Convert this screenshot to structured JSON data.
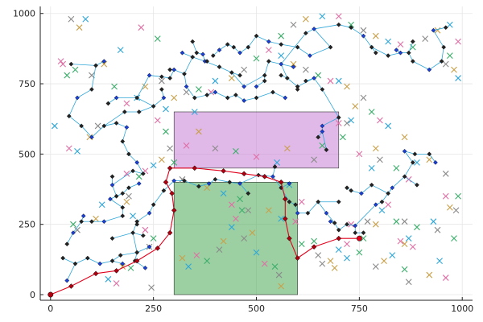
{
  "chart_data": {
    "type": "scatter",
    "title": "",
    "xlabel": "",
    "ylabel": "",
    "xlim": [
      -25,
      1025
    ],
    "ylim": [
      -20,
      1025
    ],
    "xticks": [
      0,
      250,
      500,
      750,
      1000
    ],
    "yticks": [
      0,
      250,
      500,
      750,
      1000
    ],
    "xtick_labels": [
      "0",
      "250",
      "500",
      "750",
      "1000"
    ],
    "ytick_labels": [
      "0",
      "250",
      "500",
      "750",
      "1000"
    ],
    "grid": true,
    "legend": "none",
    "obstacles": [
      {
        "x0": 300,
        "y0": 450,
        "x1": 700,
        "y1": 650,
        "color": "#c77fd6",
        "alpha": 0.55
      },
      {
        "x0": 300,
        "y0": 0,
        "x1": 600,
        "y1": 400,
        "color": "#4aaa55",
        "alpha": 0.55
      }
    ],
    "tree_color": "#2ea6d8",
    "path_color": "#e0001b",
    "start": {
      "x": 0,
      "y": 0
    },
    "goal": {
      "x": 750,
      "y": 200
    },
    "path": [
      [
        0,
        0
      ],
      [
        50,
        30
      ],
      [
        110,
        75
      ],
      [
        160,
        85
      ],
      [
        210,
        120
      ],
      [
        260,
        165
      ],
      [
        290,
        220
      ],
      [
        300,
        300
      ],
      [
        295,
        360
      ],
      [
        280,
        400
      ],
      [
        290,
        450
      ],
      [
        350,
        450
      ],
      [
        420,
        440
      ],
      [
        470,
        430
      ],
      [
        520,
        420
      ],
      [
        560,
        400
      ],
      [
        570,
        340
      ],
      [
        570,
        270
      ],
      [
        580,
        200
      ],
      [
        600,
        130
      ],
      [
        640,
        170
      ],
      [
        700,
        200
      ],
      [
        750,
        200
      ]
    ],
    "tree_nodes": [
      [
        40,
        50
      ],
      [
        60,
        110
      ],
      [
        90,
        130
      ],
      [
        120,
        110
      ],
      [
        150,
        120
      ],
      [
        170,
        140
      ],
      [
        175,
        110
      ],
      [
        210,
        150
      ],
      [
        205,
        120
      ],
      [
        230,
        95
      ],
      [
        200,
        220
      ],
      [
        210,
        260
      ],
      [
        240,
        290
      ],
      [
        250,
        320
      ],
      [
        275,
        370
      ],
      [
        300,
        405
      ],
      [
        325,
        405
      ],
      [
        360,
        385
      ],
      [
        385,
        395
      ],
      [
        400,
        410
      ],
      [
        435,
        400
      ],
      [
        460,
        395
      ],
      [
        480,
        360
      ],
      [
        505,
        425
      ],
      [
        540,
        420
      ],
      [
        545,
        455
      ],
      [
        560,
        380
      ],
      [
        580,
        395
      ],
      [
        580,
        330
      ],
      [
        595,
        320
      ],
      [
        600,
        290
      ],
      [
        625,
        290
      ],
      [
        650,
        330
      ],
      [
        670,
        290
      ],
      [
        690,
        255
      ],
      [
        700,
        330
      ],
      [
        680,
        260
      ],
      [
        700,
        230
      ],
      [
        720,
        250
      ],
      [
        740,
        245
      ],
      [
        740,
        220
      ],
      [
        760,
        220
      ],
      [
        790,
        320
      ],
      [
        805,
        330
      ],
      [
        820,
        360
      ],
      [
        830,
        380
      ],
      [
        860,
        420
      ],
      [
        880,
        470
      ],
      [
        860,
        510
      ],
      [
        885,
        500
      ],
      [
        920,
        500
      ],
      [
        935,
        470
      ],
      [
        890,
        390
      ],
      [
        780,
        390
      ],
      [
        755,
        360
      ],
      [
        730,
        370
      ],
      [
        720,
        380
      ],
      [
        660,
        580
      ],
      [
        670,
        515
      ],
      [
        650,
        560
      ],
      [
        660,
        600
      ],
      [
        700,
        630
      ],
      [
        660,
        730
      ],
      [
        640,
        770
      ],
      [
        600,
        740
      ],
      [
        575,
        770
      ],
      [
        560,
        820
      ],
      [
        530,
        830
      ],
      [
        520,
        780
      ],
      [
        470,
        740
      ],
      [
        440,
        790
      ],
      [
        410,
        810
      ],
      [
        375,
        830
      ],
      [
        345,
        845
      ],
      [
        325,
        785
      ],
      [
        300,
        800
      ],
      [
        290,
        770
      ],
      [
        270,
        775
      ],
      [
        240,
        780
      ],
      [
        210,
        700
      ],
      [
        250,
        670
      ],
      [
        275,
        700
      ],
      [
        215,
        650
      ],
      [
        180,
        650
      ],
      [
        160,
        700
      ],
      [
        140,
        680
      ],
      [
        130,
        600
      ],
      [
        100,
        560
      ],
      [
        75,
        600
      ],
      [
        45,
        635
      ],
      [
        65,
        700
      ],
      [
        100,
        730
      ],
      [
        110,
        815
      ],
      [
        130,
        830
      ],
      [
        50,
        820
      ],
      [
        160,
        610
      ],
      [
        185,
        595
      ],
      [
        175,
        545
      ],
      [
        190,
        500
      ],
      [
        210,
        470
      ],
      [
        225,
        430
      ],
      [
        200,
        440
      ],
      [
        150,
        390
      ],
      [
        150,
        420
      ],
      [
        160,
        350
      ],
      [
        145,
        340
      ],
      [
        175,
        360
      ],
      [
        190,
        380
      ],
      [
        215,
        395
      ],
      [
        175,
        310
      ],
      [
        175,
        280
      ],
      [
        130,
        260
      ],
      [
        100,
        260
      ],
      [
        75,
        260
      ],
      [
        55,
        220
      ],
      [
        40,
        180
      ],
      [
        30,
        130
      ],
      [
        80,
        280
      ],
      [
        150,
        200
      ],
      [
        225,
        210
      ],
      [
        240,
        170
      ],
      [
        210,
        250
      ],
      [
        620,
        930
      ],
      [
        640,
        945
      ],
      [
        700,
        960
      ],
      [
        730,
        950
      ],
      [
        760,
        920
      ],
      [
        780,
        880
      ],
      [
        820,
        850
      ],
      [
        850,
        860
      ],
      [
        870,
        860
      ],
      [
        880,
        830
      ],
      [
        920,
        800
      ],
      [
        950,
        830
      ],
      [
        955,
        880
      ],
      [
        930,
        940
      ],
      [
        960,
        950
      ],
      [
        880,
        900
      ],
      [
        840,
        870
      ],
      [
        790,
        860
      ],
      [
        680,
        880
      ],
      [
        630,
        850
      ],
      [
        600,
        880
      ],
      [
        560,
        890
      ],
      [
        530,
        900
      ],
      [
        500,
        920
      ],
      [
        480,
        880
      ],
      [
        460,
        860
      ],
      [
        445,
        880
      ],
      [
        430,
        890
      ],
      [
        410,
        870
      ],
      [
        395,
        850
      ],
      [
        380,
        830
      ],
      [
        370,
        855
      ],
      [
        355,
        860
      ],
      [
        345,
        900
      ],
      [
        320,
        860
      ],
      [
        290,
        800
      ],
      [
        270,
        730
      ],
      [
        330,
        740
      ],
      [
        350,
        700
      ],
      [
        380,
        710
      ],
      [
        400,
        720
      ],
      [
        430,
        700
      ],
      [
        450,
        710
      ],
      [
        470,
        690
      ],
      [
        500,
        700
      ],
      [
        540,
        720
      ],
      [
        570,
        700
      ],
      [
        600,
        730
      ],
      [
        620,
        760
      ],
      [
        590,
        810
      ],
      [
        560,
        780
      ],
      [
        520,
        760
      ],
      [
        500,
        740
      ],
      [
        460,
        780
      ]
    ],
    "random_points": [
      [
        10,
        600
      ],
      [
        25,
        830
      ],
      [
        40,
        780
      ],
      [
        50,
        980
      ],
      [
        70,
        950
      ],
      [
        85,
        980
      ],
      [
        30,
        820
      ],
      [
        60,
        800
      ],
      [
        100,
        780
      ],
      [
        130,
        820
      ],
      [
        170,
        870
      ],
      [
        220,
        950
      ],
      [
        260,
        910
      ],
      [
        270,
        760
      ],
      [
        230,
        740
      ],
      [
        210,
        700
      ],
      [
        185,
        680
      ],
      [
        155,
        740
      ],
      [
        115,
        600
      ],
      [
        95,
        560
      ],
      [
        65,
        510
      ],
      [
        45,
        520
      ],
      [
        55,
        250
      ],
      [
        65,
        230
      ],
      [
        110,
        270
      ],
      [
        125,
        320
      ],
      [
        185,
        430
      ],
      [
        215,
        420
      ],
      [
        190,
        350
      ],
      [
        185,
        330
      ],
      [
        200,
        280
      ],
      [
        230,
        230
      ],
      [
        250,
        200
      ],
      [
        240,
        170
      ],
      [
        175,
        100
      ],
      [
        140,
        55
      ],
      [
        160,
        40
      ],
      [
        195,
        95
      ],
      [
        245,
        25
      ],
      [
        320,
        130
      ],
      [
        335,
        100
      ],
      [
        355,
        140
      ],
      [
        380,
        120
      ],
      [
        410,
        160
      ],
      [
        420,
        190
      ],
      [
        440,
        240
      ],
      [
        450,
        270
      ],
      [
        465,
        300
      ],
      [
        470,
        200
      ],
      [
        490,
        220
      ],
      [
        500,
        150
      ],
      [
        520,
        110
      ],
      [
        545,
        100
      ],
      [
        555,
        70
      ],
      [
        560,
        30
      ],
      [
        580,
        390
      ],
      [
        610,
        330
      ],
      [
        640,
        190
      ],
      [
        660,
        110
      ],
      [
        690,
        95
      ],
      [
        720,
        130
      ],
      [
        730,
        250
      ],
      [
        760,
        200
      ],
      [
        770,
        260
      ],
      [
        790,
        250
      ],
      [
        805,
        300
      ],
      [
        820,
        320
      ],
      [
        840,
        260
      ],
      [
        860,
        260
      ],
      [
        860,
        180
      ],
      [
        870,
        200
      ],
      [
        880,
        170
      ],
      [
        860,
        90
      ],
      [
        870,
        45
      ],
      [
        920,
        70
      ],
      [
        945,
        120
      ],
      [
        960,
        60
      ],
      [
        980,
        200
      ],
      [
        985,
        300
      ],
      [
        970,
        310
      ],
      [
        930,
        260
      ],
      [
        960,
        350
      ],
      [
        990,
        350
      ],
      [
        960,
        430
      ],
      [
        920,
        480
      ],
      [
        890,
        470
      ],
      [
        870,
        410
      ],
      [
        840,
        450
      ],
      [
        800,
        480
      ],
      [
        790,
        520
      ],
      [
        780,
        450
      ],
      [
        750,
        500
      ],
      [
        710,
        560
      ],
      [
        720,
        610
      ],
      [
        740,
        670
      ],
      [
        730,
        620
      ],
      [
        700,
        610
      ],
      [
        660,
        530
      ],
      [
        640,
        480
      ],
      [
        575,
        520
      ],
      [
        550,
        470
      ],
      [
        500,
        490
      ],
      [
        450,
        510
      ],
      [
        400,
        520
      ],
      [
        360,
        580
      ],
      [
        350,
        650
      ],
      [
        330,
        530
      ],
      [
        300,
        470
      ],
      [
        320,
        410
      ],
      [
        380,
        380
      ],
      [
        420,
        360
      ],
      [
        440,
        320
      ],
      [
        460,
        340
      ],
      [
        480,
        300
      ],
      [
        530,
        300
      ],
      [
        560,
        270
      ],
      [
        595,
        260
      ],
      [
        610,
        180
      ],
      [
        650,
        140
      ],
      [
        680,
        120
      ],
      [
        700,
        160
      ],
      [
        720,
        180
      ],
      [
        750,
        150
      ],
      [
        790,
        100
      ],
      [
        810,
        120
      ],
      [
        830,
        140
      ],
      [
        850,
        190
      ],
      [
        890,
        240
      ],
      [
        940,
        230
      ],
      [
        860,
        560
      ],
      [
        820,
        600
      ],
      [
        800,
        620
      ],
      [
        780,
        650
      ],
      [
        760,
        700
      ],
      [
        720,
        740
      ],
      [
        700,
        760
      ],
      [
        680,
        760
      ],
      [
        650,
        780
      ],
      [
        620,
        800
      ],
      [
        590,
        820
      ],
      [
        560,
        850
      ],
      [
        530,
        870
      ],
      [
        500,
        840
      ],
      [
        470,
        800
      ],
      [
        440,
        770
      ],
      [
        400,
        760
      ],
      [
        390,
        720
      ],
      [
        360,
        730
      ],
      [
        330,
        720
      ],
      [
        300,
        700
      ],
      [
        280,
        660
      ],
      [
        260,
        620
      ],
      [
        280,
        580
      ],
      [
        290,
        520
      ],
      [
        270,
        480
      ],
      [
        250,
        460
      ],
      [
        230,
        440
      ],
      [
        560,
        920
      ],
      [
        590,
        960
      ],
      [
        620,
        980
      ],
      [
        660,
        990
      ],
      [
        700,
        990
      ],
      [
        730,
        960
      ],
      [
        760,
        940
      ],
      [
        790,
        920
      ],
      [
        820,
        900
      ],
      [
        850,
        890
      ],
      [
        880,
        880
      ],
      [
        910,
        910
      ],
      [
        940,
        940
      ],
      [
        970,
        960
      ],
      [
        990,
        900
      ],
      [
        970,
        850
      ],
      [
        960,
        820
      ],
      [
        980,
        800
      ],
      [
        990,
        770
      ]
    ],
    "marker_palette": [
      "#2ea6d8",
      "#e06ea5",
      "#3cae6b",
      "#8a8a8a",
      "#c9a04a"
    ]
  }
}
